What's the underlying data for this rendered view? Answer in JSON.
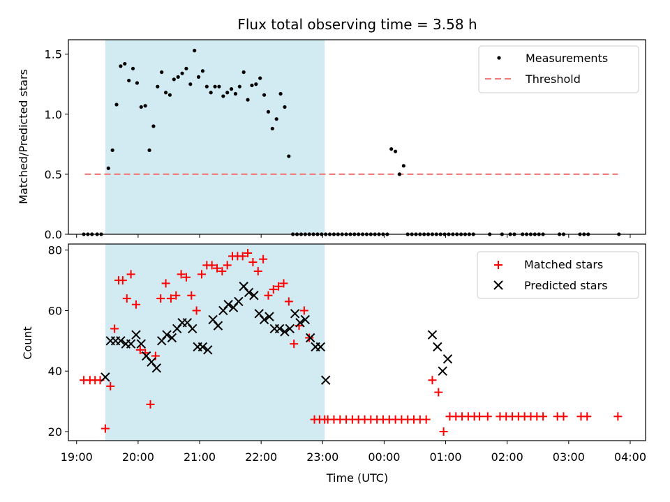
{
  "chart_data": [
    {
      "type": "scatter",
      "title": "Flux total observing time = 3.58 h",
      "ylabel": "Matched/Predicted stars",
      "xlim": [
        "18:52",
        "04:15"
      ],
      "ylim": [
        0,
        1.62
      ],
      "yticks": [
        "0.0",
        "0.5",
        "1.0",
        "1.5"
      ],
      "legend": {
        "placement": "upper-right",
        "entries": [
          "Measurements",
          "Threshold"
        ]
      },
      "highlight_span": {
        "from": "19:28",
        "to": "23:02",
        "color": "#add8e6"
      },
      "colors": {
        "measurements": "#000000",
        "threshold": "#f08080"
      },
      "threshold": {
        "value": 0.5,
        "x_from": "19:08",
        "x_to": "03:48"
      },
      "series": [
        {
          "name": "Measurements",
          "x": [
            "19:07",
            "19:11",
            "19:15",
            "19:20",
            "19:24",
            "19:31",
            "19:35",
            "19:39",
            "19:43",
            "19:47",
            "19:51",
            "19:55",
            "19:59",
            "20:03",
            "20:07",
            "20:11",
            "20:15",
            "20:19",
            "20:23",
            "20:27",
            "20:31",
            "20:35",
            "20:39",
            "20:43",
            "20:47",
            "20:51",
            "20:55",
            "20:59",
            "21:03",
            "21:07",
            "21:11",
            "21:15",
            "21:19",
            "21:23",
            "21:27",
            "21:31",
            "21:35",
            "21:39",
            "21:43",
            "21:47",
            "21:51",
            "21:55",
            "21:59",
            "22:03",
            "22:07",
            "22:11",
            "22:15",
            "22:19",
            "22:23",
            "22:27",
            "22:31",
            "22:35",
            "22:39",
            "22:43",
            "22:47",
            "22:51",
            "22:55",
            "22:59",
            "23:03",
            "23:07",
            "23:11",
            "23:15",
            "23:19",
            "23:23",
            "23:27",
            "23:31",
            "23:35",
            "23:39",
            "23:43",
            "23:47",
            "23:51",
            "23:55",
            "23:59",
            "00:03",
            "00:07",
            "00:11",
            "00:15",
            "00:19",
            "00:23",
            "00:27",
            "00:31",
            "00:35",
            "00:39",
            "00:43",
            "00:47",
            "00:51",
            "00:55",
            "00:59",
            "01:03",
            "01:07",
            "01:11",
            "01:15",
            "01:19",
            "01:23",
            "01:27",
            "01:43",
            "01:55",
            "02:03",
            "02:07",
            "02:15",
            "02:19",
            "02:23",
            "02:27",
            "02:31",
            "02:35",
            "02:51",
            "02:55",
            "03:11",
            "03:15",
            "03:19",
            "03:49"
          ],
          "y": [
            0,
            0,
            0,
            0,
            0,
            0.55,
            0.7,
            1.08,
            1.4,
            1.42,
            1.28,
            1.38,
            1.26,
            1.06,
            1.07,
            0.7,
            0.9,
            1.23,
            1.35,
            1.18,
            1.16,
            1.29,
            1.31,
            1.34,
            1.38,
            1.25,
            1.53,
            1.31,
            1.36,
            1.23,
            1.18,
            1.23,
            1.23,
            1.15,
            1.18,
            1.21,
            1.17,
            1.23,
            1.35,
            1.12,
            1.24,
            1.25,
            1.3,
            1.16,
            1.02,
            0.88,
            0.96,
            1.17,
            1.06,
            0.65,
            0,
            0,
            0,
            0,
            0,
            0,
            0,
            0,
            0,
            0,
            0,
            0,
            0,
            0,
            0,
            0,
            0,
            0,
            0,
            0,
            0,
            0,
            0,
            0,
            0.71,
            0.69,
            0.5,
            0.57,
            0,
            0,
            0,
            0,
            0,
            0,
            0,
            0,
            0,
            0,
            0,
            0,
            0,
            0,
            0,
            0,
            0,
            0,
            0,
            0,
            0,
            0,
            0,
            0,
            0,
            0,
            0,
            0,
            0,
            0,
            0,
            0,
            0
          ]
        }
      ]
    },
    {
      "type": "scatter",
      "xlabel": "Time (UTC)",
      "ylabel": "Count",
      "xlim": [
        "18:52",
        "04:15"
      ],
      "ylim": [
        17,
        82
      ],
      "yticks": [
        "20",
        "40",
        "60",
        "80"
      ],
      "xticks": [
        "19:00",
        "20:00",
        "21:00",
        "22:00",
        "23:00",
        "00:00",
        "01:00",
        "02:00",
        "03:00",
        "04:00"
      ],
      "legend": {
        "placement": "upper-right",
        "entries": [
          "Matched stars",
          "Predicted stars"
        ]
      },
      "highlight_span": {
        "from": "19:28",
        "to": "23:02",
        "color": "#add8e6"
      },
      "colors": {
        "matched": "#ff0000",
        "predicted": "#000000"
      },
      "series": [
        {
          "name": "Matched stars",
          "x": [
            "19:07",
            "19:13",
            "19:18",
            "19:23",
            "19:28",
            "19:33",
            "19:37",
            "19:41",
            "19:45",
            "19:49",
            "19:53",
            "19:58",
            "20:02",
            "20:07",
            "20:12",
            "20:17",
            "20:22",
            "20:27",
            "20:32",
            "20:37",
            "20:42",
            "20:47",
            "20:52",
            "20:57",
            "21:02",
            "21:07",
            "21:12",
            "21:17",
            "21:22",
            "21:27",
            "21:32",
            "21:37",
            "21:42",
            "21:47",
            "21:52",
            "21:57",
            "22:02",
            "22:07",
            "22:12",
            "22:17",
            "22:22",
            "22:27",
            "22:32",
            "22:37",
            "22:42",
            "22:47",
            "22:52",
            "22:57",
            "23:02",
            "23:05",
            "23:11",
            "23:17",
            "23:23",
            "23:29",
            "23:35",
            "23:41",
            "23:47",
            "23:53",
            "23:59",
            "00:05",
            "00:11",
            "00:17",
            "00:23",
            "00:29",
            "00:35",
            "00:41",
            "00:47",
            "00:53",
            "00:58",
            "01:04",
            "01:10",
            "01:16",
            "01:22",
            "01:28",
            "01:33",
            "01:41",
            "01:53",
            "01:59",
            "02:05",
            "02:11",
            "02:17",
            "02:23",
            "02:29",
            "02:35",
            "02:49",
            "02:55",
            "03:12",
            "03:18",
            "03:48"
          ],
          "y": [
            37,
            37,
            37,
            37,
            21,
            35,
            54,
            70,
            70,
            64,
            72,
            62,
            47,
            46,
            29,
            45,
            64,
            69,
            64,
            65,
            72,
            71,
            65,
            60,
            72,
            75,
            75,
            74,
            73,
            75,
            78,
            78,
            78,
            79,
            76,
            73,
            77,
            65,
            67,
            68,
            69,
            63,
            49,
            55,
            60,
            51,
            24,
            24,
            24,
            24,
            24,
            24,
            24,
            24,
            24,
            24,
            24,
            24,
            24,
            24,
            24,
            24,
            24,
            24,
            24,
            24,
            37,
            33,
            20,
            25,
            25,
            25,
            25,
            25,
            25,
            25,
            25,
            25,
            25,
            25,
            25,
            25,
            25,
            25,
            25,
            25,
            25,
            25,
            25
          ]
        },
        {
          "name": "Predicted stars",
          "x": [
            "19:28",
            "19:33",
            "19:38",
            "19:43",
            "19:48",
            "19:53",
            "19:58",
            "20:03",
            "20:08",
            "20:13",
            "20:18",
            "20:23",
            "20:28",
            "20:33",
            "20:38",
            "20:43",
            "20:48",
            "20:53",
            "20:58",
            "21:03",
            "21:08",
            "21:13",
            "21:18",
            "21:23",
            "21:28",
            "21:33",
            "21:38",
            "21:43",
            "21:48",
            "21:53",
            "21:58",
            "22:03",
            "22:08",
            "22:13",
            "22:18",
            "22:23",
            "22:28",
            "22:33",
            "22:38",
            "22:43",
            "22:48",
            "22:53",
            "22:58",
            "23:03",
            "00:47",
            "00:52",
            "00:57",
            "01:02"
          ],
          "y": [
            38,
            50,
            50,
            50,
            49,
            49,
            52,
            49,
            45,
            43,
            41,
            50,
            52,
            51,
            54,
            56,
            56,
            54,
            48,
            48,
            47,
            57,
            55,
            60,
            62,
            61,
            63,
            68,
            66,
            65,
            59,
            57,
            58,
            54,
            54,
            53,
            54,
            59,
            56,
            57,
            51,
            48,
            48,
            37,
            52,
            48,
            40,
            44
          ]
        }
      ]
    }
  ]
}
